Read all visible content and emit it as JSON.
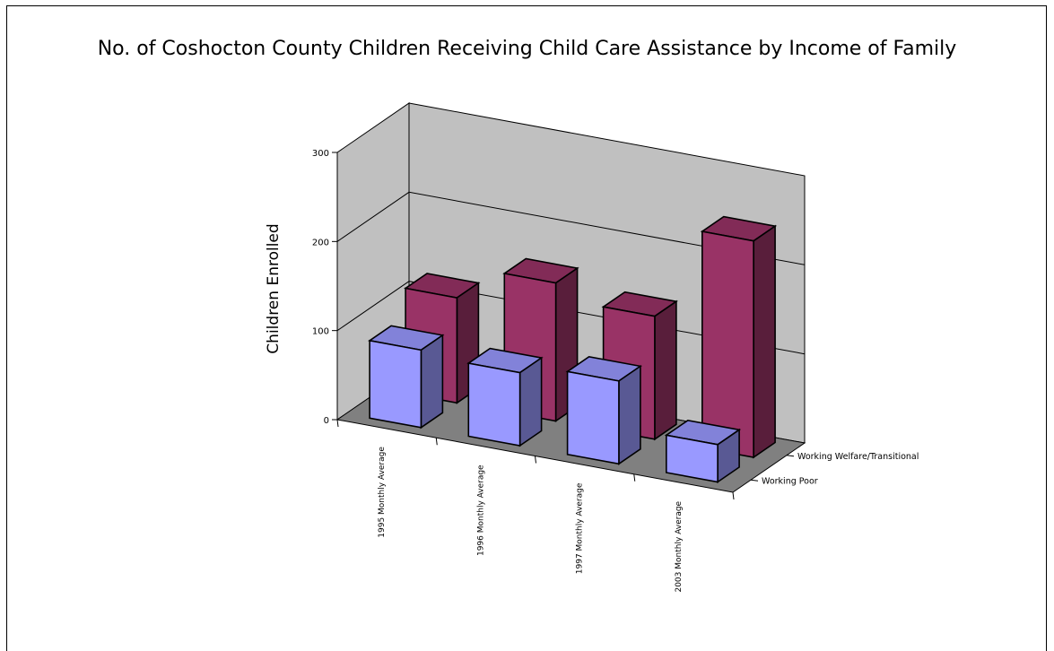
{
  "chart_data": {
    "type": "bar",
    "style": "3d-column",
    "title": "No. of Coshocton County Children Receiving Child Care Assistance by Income of Family",
    "xlabel": "",
    "ylabel": "Children Enrolled",
    "ylim": [
      0,
      300
    ],
    "yticks": [
      "0",
      "100",
      "200",
      "300"
    ],
    "categories": [
      "1995 Monthly Average",
      "1996 Monthly Average",
      "1997 Monthly Average",
      "2003 Monthly Average"
    ],
    "series": [
      {
        "name": "Working Welfare/Transitional",
        "color": "#9999ff",
        "values": [
          87,
          82,
          93,
          42
        ]
      },
      {
        "name": "Working Poor",
        "color": "#993366",
        "values": [
          118,
          155,
          138,
          243
        ]
      }
    ],
    "grid": true,
    "legend": "depth-axis"
  }
}
